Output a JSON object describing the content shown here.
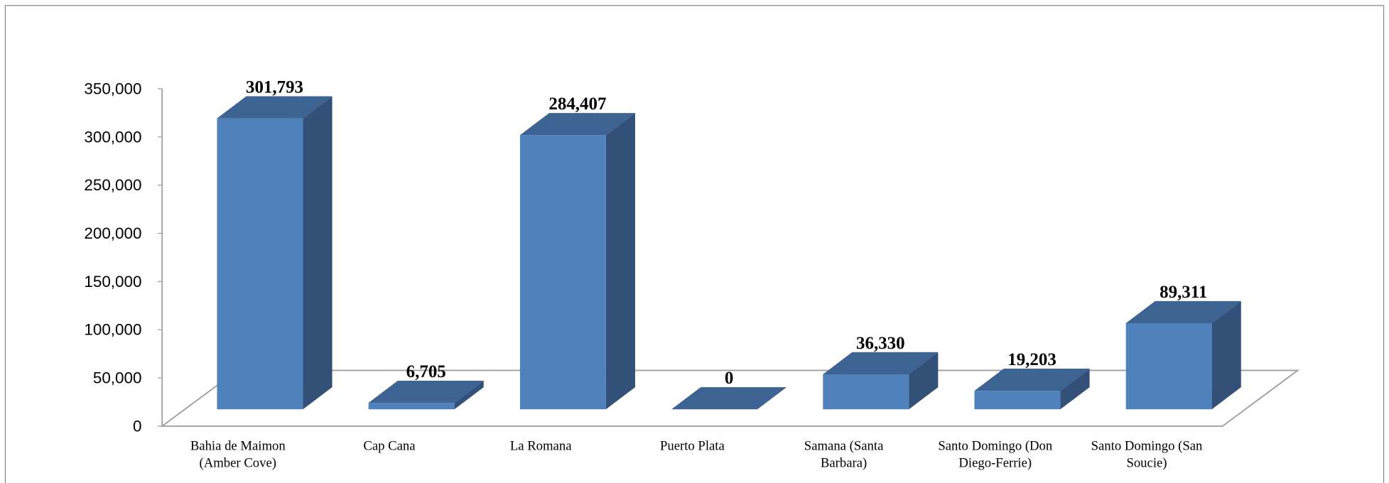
{
  "chart_data": {
    "type": "bar3d",
    "categories": [
      "Bahia de Maimon (Amber Cove)",
      "Cap Cana",
      "La Romana",
      "Puerto Plata",
      "Samana (Santa Barbara)",
      "Santo Domingo (Don Diego-Ferrie)",
      "Santo Domingo (San Soucie)"
    ],
    "values": [
      301793,
      6705,
      284407,
      0,
      36330,
      19203,
      89311
    ],
    "value_labels": [
      "301,793",
      "6,705",
      "284,407",
      "0",
      "36,330",
      "19,203",
      "89,311"
    ],
    "color": "#4f81bd",
    "ylim": [
      0,
      350000
    ],
    "yticks": [
      0,
      {
        "value": 50000,
        "label": "50,000"
      },
      {
        "value": 100000,
        "label": "100,000"
      },
      {
        "value": 150000,
        "label": "150,000"
      },
      {
        "value": 200000,
        "label": "200,000"
      },
      {
        "value": 250000,
        "label": "250,000"
      },
      {
        "value": 300000,
        "label": "300,000"
      },
      {
        "value": 350000,
        "label": "350,000"
      }
    ],
    "grid": false
  }
}
